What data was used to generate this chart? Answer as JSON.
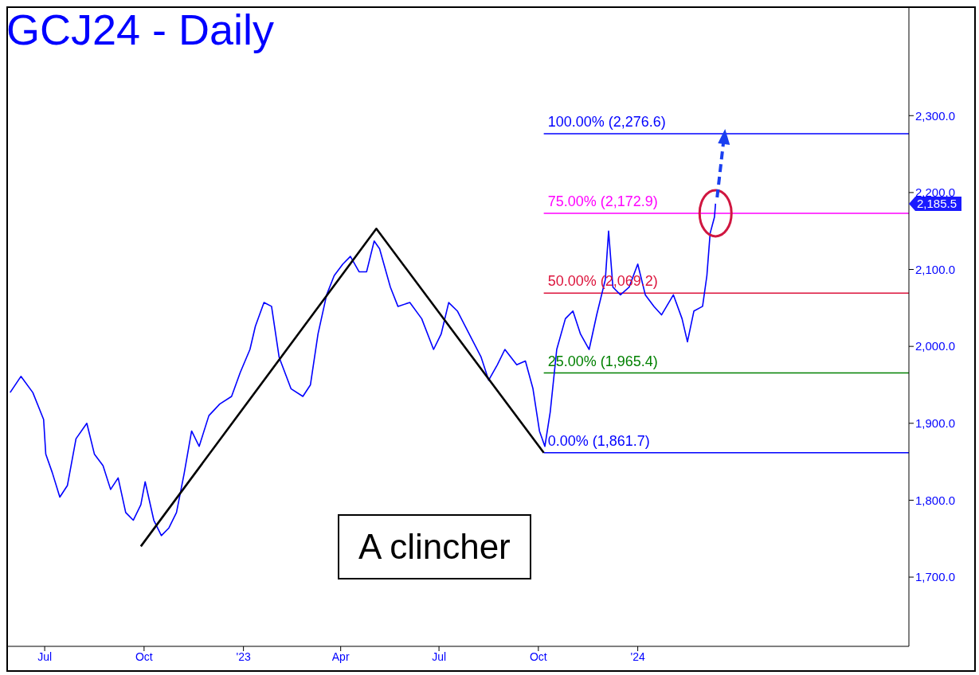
{
  "chart_data": {
    "type": "line",
    "title": "GCJ24 - Daily",
    "xlim": [
      "2022-05-28",
      "2024-09-08"
    ],
    "xticks": [
      {
        "value": "2022-07-01",
        "label": "Jul"
      },
      {
        "value": "2022-10-01",
        "label": "Oct"
      },
      {
        "value": "2023-01-01",
        "label": "'23"
      },
      {
        "value": "2023-04-01",
        "label": "Apr"
      },
      {
        "value": "2023-07-01",
        "label": "Jul"
      },
      {
        "value": "2023-10-01",
        "label": "Oct"
      },
      {
        "value": "2024-01-01",
        "label": "'24"
      }
    ],
    "ylim": [
      1610,
      2440
    ],
    "yticks": [
      {
        "value": 1700,
        "label": "1,700.0"
      },
      {
        "value": 1800,
        "label": "1,800.0"
      },
      {
        "value": 1900,
        "label": "1,900.0"
      },
      {
        "value": 2000,
        "label": "2,000.0"
      },
      {
        "value": 2100,
        "label": "2,100.0"
      },
      {
        "value": 2200,
        "label": "2,200.0"
      },
      {
        "value": 2300,
        "label": "2,300.0"
      }
    ],
    "grid": false,
    "marker": "none",
    "line_style": "solid",
    "series": [
      {
        "color": "#0000ff",
        "x": [
          "2022-05-30",
          "2022-06-09",
          "2022-06-20",
          "2022-06-30",
          "2022-07-02",
          "2022-07-08",
          "2022-07-15",
          "2022-07-22",
          "2022-07-30",
          "2022-08-09",
          "2022-08-16",
          "2022-08-24",
          "2022-08-31",
          "2022-09-07",
          "2022-09-14",
          "2022-09-21",
          "2022-09-28",
          "2022-10-02",
          "2022-10-10",
          "2022-10-17",
          "2022-10-24",
          "2022-10-31",
          "2022-11-07",
          "2022-11-14",
          "2022-11-21",
          "2022-11-30",
          "2022-12-10",
          "2022-12-21",
          "2022-12-29",
          "2023-01-07",
          "2023-01-12",
          "2023-01-20",
          "2023-01-27",
          "2023-02-03",
          "2023-02-14",
          "2023-02-25",
          "2023-03-04",
          "2023-03-11",
          "2023-03-19",
          "2023-03-26",
          "2023-04-03",
          "2023-04-10",
          "2023-04-18",
          "2023-04-25",
          "2023-05-02",
          "2023-05-07",
          "2023-05-17",
          "2023-05-24",
          "2023-06-04",
          "2023-06-15",
          "2023-06-26",
          "2023-07-03",
          "2023-07-10",
          "2023-07-18",
          "2023-07-29",
          "2023-08-09",
          "2023-08-16",
          "2023-08-24",
          "2023-08-31",
          "2023-09-11",
          "2023-09-19",
          "2023-09-26",
          "2023-10-02",
          "2023-10-07",
          "2023-10-12",
          "2023-10-18",
          "2023-10-26",
          "2023-11-02",
          "2023-11-09",
          "2023-11-17",
          "2023-11-24",
          "2023-12-02",
          "2023-12-05",
          "2023-12-09",
          "2023-12-16",
          "2023-12-24",
          "2024-01-01",
          "2024-01-08",
          "2024-01-16",
          "2024-01-23",
          "2024-02-03",
          "2024-02-11",
          "2024-02-16",
          "2024-02-22",
          "2024-03-01",
          "2024-03-05",
          "2024-03-08",
          "2024-03-12",
          "2024-03-13"
        ],
        "values": [
          1940,
          1961,
          1940,
          1905,
          1860,
          1836,
          1804,
          1819,
          1880,
          1900,
          1860,
          1845,
          1814,
          1829,
          1784,
          1774,
          1794,
          1824,
          1774,
          1754,
          1764,
          1784,
          1834,
          1890,
          1870,
          1910,
          1925,
          1935,
          1966,
          1996,
          2026,
          2057,
          2052,
          1986,
          1945,
          1935,
          1950,
          2016,
          2067,
          2092,
          2107,
          2117,
          2097,
          2097,
          2137,
          2127,
          2077,
          2052,
          2057,
          2036,
          1996,
          2016,
          2057,
          2046,
          2016,
          1986,
          1956,
          1976,
          1996,
          1976,
          1981,
          1945,
          1890,
          1870,
          1915,
          1996,
          2036,
          2046,
          2016,
          1996,
          2041,
          2087,
          2150,
          2077,
          2067,
          2077,
          2107,
          2067,
          2052,
          2041,
          2067,
          2036,
          2006,
          2046,
          2052,
          2092,
          2147,
          2168,
          2185.5
        ]
      },
      {
        "color": "#000000",
        "x": [
          "2022-09-28",
          "2023-05-04",
          "2023-10-06"
        ],
        "values": [
          1740,
          2153,
          1861.7
        ]
      }
    ],
    "ref_lines": [
      {
        "axis": "y",
        "value": 2276.6,
        "label": "100.00% (2,276.6)",
        "color": "#0000ff"
      },
      {
        "axis": "y",
        "value": 2172.9,
        "label": "75.00% (2,172.9)",
        "color": "#ff00ff"
      },
      {
        "axis": "y",
        "value": 2069.2,
        "label": "50.00% (2,069.2)",
        "color": "#dc143c"
      },
      {
        "axis": "y",
        "value": 1965.4,
        "label": "25.00% (1,965.4)",
        "color": "#008000"
      },
      {
        "axis": "y",
        "value": 1861.7,
        "label": "0.00% (1,861.7)",
        "color": "#0000ff"
      }
    ],
    "annotations": [
      "A clincher",
      "2,185.5"
    ]
  }
}
